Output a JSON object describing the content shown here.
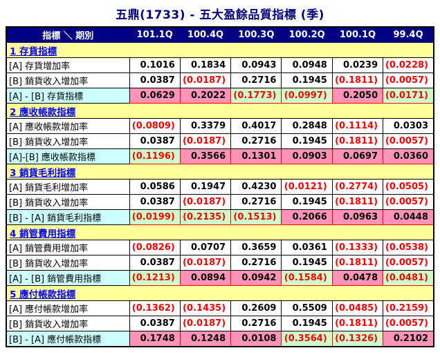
{
  "title": "五鼎(1733) -  五大盈餘品質指標 (季)",
  "table": {
    "header": [
      "指標 ＼ 期別",
      "101.1Q",
      "100.4Q",
      "100.3Q",
      "100.2Q",
      "100.1Q",
      "99.4Q"
    ],
    "sections": [
      {
        "name": "1 存貨指標",
        "rows": [
          {
            "type": "data",
            "label": "[A] 存貨增加率",
            "values": [
              "0.1016",
              "0.1834",
              "0.0943",
              "0.0948",
              "0.0239",
              "(0.0228)"
            ]
          },
          {
            "type": "data",
            "label": "[B] 銷貨收入增加率",
            "values": [
              "0.0387",
              "(0.0187)",
              "0.2716",
              "0.1945",
              "(0.1811)",
              "(0.0057)"
            ]
          },
          {
            "type": "summary",
            "label": "[A] - [B] 存貨指標",
            "values": [
              "0.0629",
              "0.2022",
              "(0.1773)",
              "(0.0997)",
              "0.2050",
              "(0.0171)"
            ]
          }
        ]
      },
      {
        "name": "2 應收帳款指標",
        "rows": [
          {
            "type": "data",
            "label": "[A] 應收帳款增加率",
            "values": [
              "(0.0809)",
              "0.3379",
              "0.4017",
              "0.2848",
              "(0.1114)",
              "0.0303"
            ]
          },
          {
            "type": "data",
            "label": "[B] 銷貨收入增加率",
            "values": [
              "0.0387",
              "(0.0187)",
              "0.2716",
              "0.1945",
              "(0.1811)",
              "(0.0057)"
            ]
          },
          {
            "type": "summary",
            "label": "[A]-[B] 應收帳款指標",
            "values": [
              "(0.1196)",
              "0.3566",
              "0.1301",
              "0.0903",
              "0.0697",
              "0.0360"
            ]
          }
        ]
      },
      {
        "name": "3 銷貨毛利指標",
        "rows": [
          {
            "type": "data",
            "label": "[A] 銷貨毛利增加率",
            "values": [
              "0.0586",
              "0.1947",
              "0.4230",
              "(0.0121)",
              "(0.2774)",
              "(0.0505)"
            ]
          },
          {
            "type": "data",
            "label": "[B] 銷貨收入增加率",
            "values": [
              "0.0387",
              "(0.0187)",
              "0.2716",
              "0.1945",
              "(0.1811)",
              "(0.0057)"
            ]
          },
          {
            "type": "summary",
            "label": "[B] - [A] 銷貨毛利指標",
            "values": [
              "(0.0199)",
              "(0.2135)",
              "(0.1513)",
              "0.2066",
              "0.0963",
              "0.0448"
            ]
          }
        ]
      },
      {
        "name": "4 銷管費用指標",
        "rows": [
          {
            "type": "data",
            "label": "[A] 銷管費用增加率",
            "values": [
              "(0.0826)",
              "0.0707",
              "0.3659",
              "0.0361",
              "(0.1333)",
              "(0.0538)"
            ]
          },
          {
            "type": "data",
            "label": "[B] 銷貨收入增加率",
            "values": [
              "0.0387",
              "(0.0187)",
              "0.2716",
              "0.1945",
              "(0.1811)",
              "(0.0057)"
            ]
          },
          {
            "type": "summary",
            "label": "[A] - [B] 銷管費用指標",
            "values": [
              "(0.1213)",
              "0.0894",
              "0.0942",
              "(0.1584)",
              "0.0478",
              "(0.0481)"
            ]
          }
        ]
      },
      {
        "name": "5 應付帳款指標",
        "rows": [
          {
            "type": "data",
            "label": "[A] 應付帳款增加率",
            "values": [
              "(0.1362)",
              "(0.1435)",
              "0.2609",
              "0.5509",
              "(0.0485)",
              "(0.2159)"
            ]
          },
          {
            "type": "data",
            "label": "[B] 銷貨收入增加率",
            "values": [
              "0.0387",
              "(0.0187)",
              "0.2716",
              "0.1945",
              "(0.1811)",
              "(0.0057)"
            ]
          },
          {
            "type": "summary",
            "label": "[B] - [A] 應付帳款指標",
            "values": [
              "0.1748",
              "0.1248",
              "0.0108",
              "(0.3564)",
              "(0.1326)",
              "0.2102"
            ]
          }
        ]
      }
    ]
  },
  "colors": {
    "header_bg": "#000080",
    "header_text": "#ffffff",
    "section_bg": "#ffff99",
    "section_text": "#0000ff",
    "summary_label_bg": "#ccffff",
    "positive_bg": "#ff94b8",
    "negative_bg": "#ccffcc",
    "negative_text": "#ff0000",
    "title_text": "#000080"
  }
}
